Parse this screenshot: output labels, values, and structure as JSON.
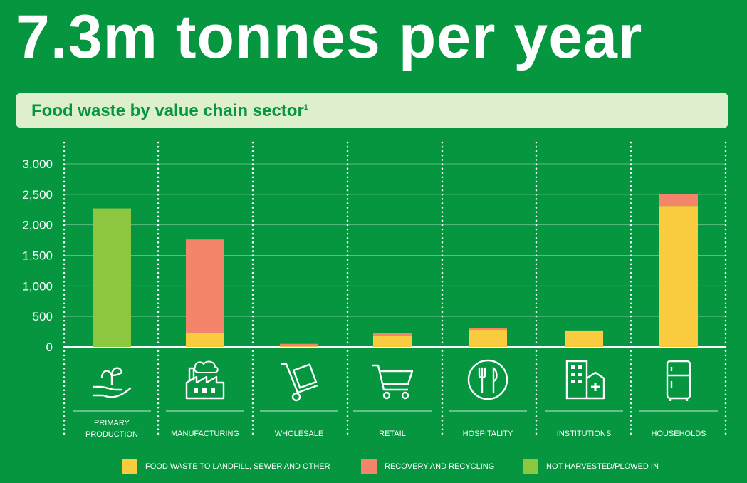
{
  "headline": "7.3m tonnes per year",
  "subtitle": "Food waste by value chain sector",
  "subtitle_note": "1",
  "colors": {
    "background": "#05963F",
    "landfill": "#F9CB3E",
    "recovery": "#F4846A",
    "not_harvested": "#8DC63F",
    "subtitle_bg": "#DDEFCD"
  },
  "icons": [
    "plant-in-hand-icon",
    "factory-icon",
    "hand-truck-icon",
    "shopping-cart-icon",
    "fork-knife-plate-icon",
    "hospital-building-icon",
    "refrigerator-icon"
  ],
  "chart_data": {
    "type": "bar",
    "stacked": true,
    "categories": [
      [
        "PRIMARY",
        "PRODUCTION"
      ],
      [
        "MANUFACTURING"
      ],
      [
        "WHOLESALE"
      ],
      [
        "RETAIL"
      ],
      [
        "HOSPITALITY"
      ],
      [
        "INSTITUTIONS"
      ],
      [
        "HOUSEHOLDS"
      ]
    ],
    "series": [
      {
        "name": "FOOD WASTE TO LANDFILL, SEWER AND OTHER",
        "color": "#F9CB3E",
        "values": [
          0,
          230,
          10,
          180,
          280,
          270,
          2310
        ]
      },
      {
        "name": "RECOVERY AND RECYCLING",
        "color": "#F4846A",
        "values": [
          0,
          1530,
          40,
          50,
          30,
          0,
          190
        ]
      },
      {
        "name": "NOT HARVESTED/PLOWED IN",
        "color": "#8DC63F",
        "values": [
          2270,
          0,
          0,
          0,
          0,
          0,
          0
        ]
      }
    ],
    "ylim": [
      0,
      3000
    ],
    "yticks": [
      "3,000",
      "2,500",
      "2,000",
      "1,500",
      "1,000",
      "500",
      "0"
    ],
    "grid": true,
    "legend": "bottom"
  }
}
